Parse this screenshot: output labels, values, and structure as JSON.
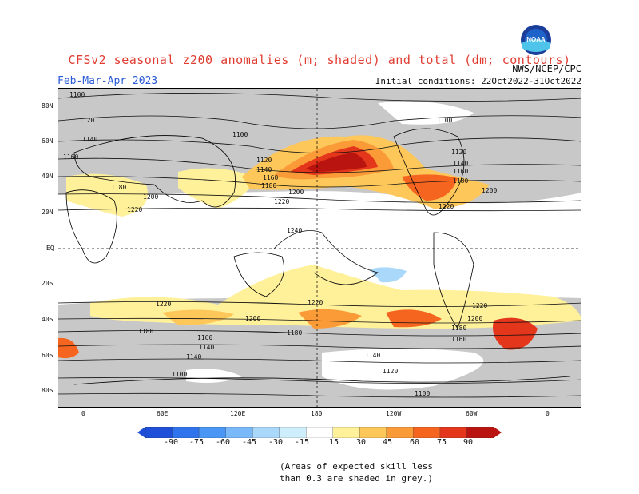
{
  "header": {
    "title": "CFSv2 seasonal z200 anomalies (m; shaded) and total (dm; contours)",
    "agency": "NWS/NCEP/CPC",
    "period": "Feb-Mar-Apr 2023",
    "init": "Initial conditions: 22Oct2022-31Oct2022",
    "logo_text": "NOAA"
  },
  "axes": {
    "lat": [
      "80N",
      "60N",
      "40N",
      "20N",
      "EQ",
      "20S",
      "40S",
      "60S",
      "80S"
    ],
    "lon": [
      "0",
      "60E",
      "120E",
      "180",
      "120W",
      "60W",
      "0"
    ]
  },
  "contours": [
    "1100",
    "1120",
    "1140",
    "1160",
    "1180",
    "1200",
    "1220",
    "1240"
  ],
  "colorbar": {
    "ticks": [
      "-90",
      "-75",
      "-60",
      "-45",
      "-30",
      "-15",
      "15",
      "30",
      "45",
      "60",
      "75",
      "90"
    ],
    "colors": [
      "#1e4fd8",
      "#2f74ec",
      "#4a96f4",
      "#79b9f9",
      "#a9d8fb",
      "#cfeefc",
      "#ffffff",
      "#fff09a",
      "#fdc75a",
      "#fb9b37",
      "#f6651f",
      "#e3361a",
      "#b9140f"
    ]
  },
  "note": {
    "line1": "(Areas of expected skill less",
    "line2": "than 0.3 are shaded in grey.)"
  }
}
